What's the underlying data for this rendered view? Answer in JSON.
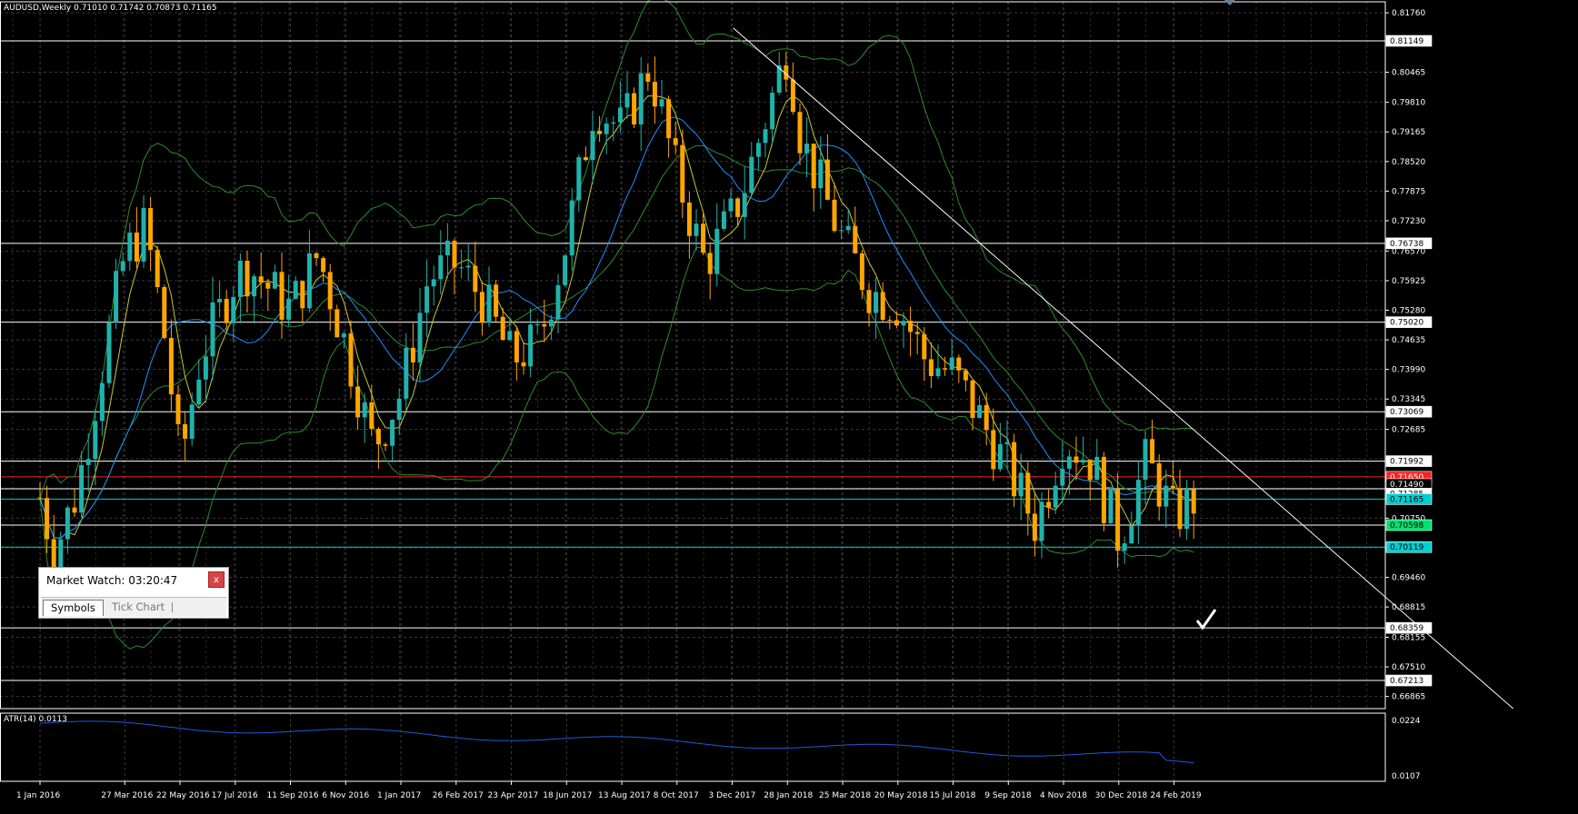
{
  "window": {
    "symbol_info": "AUDUSD,Weekly  0.71010 0.71742 0.70873 0.71165",
    "indicator_info": "ATR(14) 0.0113"
  },
  "colors": {
    "background": "#000000",
    "grid": "#3a3a3a",
    "bull_candle": "#20b2aa",
    "bear_candle": "#ffa500",
    "bollinger": "#2e8b2e",
    "fast_ma": "#c8c832",
    "slow_ma": "#1e90ff",
    "support_line": "#00ced1",
    "resistance_line": "#ff2020",
    "atr_line": "#1e5adc"
  },
  "price_axis": {
    "min": 0.666,
    "max": 0.82,
    "labels": [
      "0.81760",
      "0.80465",
      "0.79810",
      "0.79165",
      "0.78520",
      "0.77875",
      "0.77230",
      "0.76570",
      "0.75925",
      "0.75280",
      "0.74635",
      "0.73990",
      "0.73345",
      "0.72685",
      "0.72040",
      "0.71395",
      "0.70750",
      "0.70105",
      "0.69460",
      "0.68815",
      "0.68155",
      "0.67510",
      "0.66865"
    ]
  },
  "tags": [
    {
      "price": 0.81149,
      "text": "0.81149",
      "bg": "#ffffff",
      "fg": "#000000"
    },
    {
      "price": 0.76738,
      "text": "0.76738",
      "bg": "#ffffff",
      "fg": "#000000"
    },
    {
      "price": 0.7502,
      "text": "0.75020",
      "bg": "#ffffff",
      "fg": "#000000"
    },
    {
      "price": 0.73069,
      "text": "0.73069",
      "bg": "#ffffff",
      "fg": "#000000"
    },
    {
      "price": 0.71992,
      "text": "0.71992",
      "bg": "#ffffff",
      "fg": "#000000"
    },
    {
      "price": 0.7165,
      "text": "0.71650",
      "bg": "#ff2020",
      "fg": "#ffffff"
    },
    {
      "price": 0.7149,
      "text": "0.71490",
      "bg": "#000000",
      "fg": "#ffffff"
    },
    {
      "price": 0.71285,
      "text": "0.71285",
      "bg": "#ffffff",
      "fg": "#000000"
    },
    {
      "price": 0.71165,
      "text": "0.71165",
      "bg": "#00ced1",
      "fg": "#000000"
    },
    {
      "price": 0.70598,
      "text": "0.70598",
      "bg": "#00e070",
      "fg": "#000000"
    },
    {
      "price": 0.70119,
      "text": "0.70119",
      "bg": "#00ced1",
      "fg": "#000000"
    },
    {
      "price": 0.68359,
      "text": "0.68359",
      "bg": "#ffffff",
      "fg": "#000000"
    },
    {
      "price": 0.67213,
      "text": "0.67213",
      "bg": "#ffffff",
      "fg": "#000000"
    }
  ],
  "hlines": [
    {
      "price": 0.81149,
      "color": "#ffffff"
    },
    {
      "price": 0.76738,
      "color": "#ffffff"
    },
    {
      "price": 0.7502,
      "color": "#ffffff"
    },
    {
      "price": 0.73069,
      "color": "#ffffff"
    },
    {
      "price": 0.71992,
      "color": "#ffffff"
    },
    {
      "price": 0.7165,
      "color": "#ff2020"
    },
    {
      "price": 0.7139,
      "color": "#ffffff"
    },
    {
      "price": 0.71165,
      "color": "#00ced1"
    },
    {
      "price": 0.70598,
      "color": "#ffffff"
    },
    {
      "price": 0.70119,
      "color": "#00ced1"
    },
    {
      "price": 0.68359,
      "color": "#ffffff"
    },
    {
      "price": 0.67213,
      "color": "#ffffff"
    }
  ],
  "trendline": {
    "from": {
      "date": "4 Dec 2017",
      "price": 0.8143
    },
    "to": {
      "date": "3 Feb 2020",
      "price": 0.666
    }
  },
  "time_axis": [
    "1 Jan 2016",
    "27 Mar 2016",
    "22 May 2016",
    "17 Jul 2016",
    "11 Sep 2016",
    "6 Nov 2016",
    "1 Jan 2017",
    "26 Feb 2017",
    "23 Apr 2017",
    "18 Jun 2017",
    "13 Aug 2017",
    "8 Oct 2017",
    "3 Dec 2017",
    "28 Jan 2018",
    "25 Mar 2018",
    "20 May 2018",
    "15 Jul 2018",
    "9 Sep 2018",
    "4 Nov 2018",
    "30 Dec 2018",
    "24 Feb 2019"
  ],
  "atr_axis": {
    "labels": [
      "0.0224",
      "0.0107"
    ]
  },
  "market_watch": {
    "title": "Market Watch: 03:20:47",
    "close_label": "x",
    "tabs": [
      "Symbols",
      "Tick Chart"
    ]
  },
  "chart_data": {
    "type": "candlestick",
    "title": "AUDUSD,Weekly",
    "ylim": [
      0.666,
      0.82
    ],
    "close_path": [
      {
        "date": "1 Jan 2016",
        "close": 0.712
      },
      {
        "date": "15 Jan 2016",
        "close": 0.7
      },
      {
        "date": "7 Feb 2016",
        "close": 0.713
      },
      {
        "date": "27 Mar 2016",
        "close": 0.765
      },
      {
        "date": "17 Apr 2016",
        "close": 0.771
      },
      {
        "date": "8 May 2016",
        "close": 0.745
      },
      {
        "date": "22 May 2016",
        "close": 0.719
      },
      {
        "date": "12 Jun 2016",
        "close": 0.743
      },
      {
        "date": "17 Jul 2016",
        "close": 0.76
      },
      {
        "date": "31 Jul 2016",
        "close": 0.762
      },
      {
        "date": "11 Sep 2016",
        "close": 0.753
      },
      {
        "date": "9 Oct 2016",
        "close": 0.765
      },
      {
        "date": "6 Nov 2016",
        "close": 0.745
      },
      {
        "date": "4 Dec 2016",
        "close": 0.723
      },
      {
        "date": "1 Jan 2017",
        "close": 0.735
      },
      {
        "date": "29 Jan 2017",
        "close": 0.76
      },
      {
        "date": "26 Feb 2017",
        "close": 0.763
      },
      {
        "date": "26 Mar 2017",
        "close": 0.755
      },
      {
        "date": "23 Apr 2017",
        "close": 0.742
      },
      {
        "date": "21 May 2017",
        "close": 0.746
      },
      {
        "date": "18 Jun 2017",
        "close": 0.768
      },
      {
        "date": "16 Jul 2017",
        "close": 0.798
      },
      {
        "date": "13 Aug 2017",
        "close": 0.792
      },
      {
        "date": "10 Sep 2017",
        "close": 0.806
      },
      {
        "date": "8 Oct 2017",
        "close": 0.782
      },
      {
        "date": "5 Nov 2017",
        "close": 0.763
      },
      {
        "date": "3 Dec 2017",
        "close": 0.773
      },
      {
        "date": "17 Dec 2017",
        "close": 0.781
      },
      {
        "date": "28 Jan 2018",
        "close": 0.81
      },
      {
        "date": "11 Feb 2018",
        "close": 0.79
      },
      {
        "date": "25 Mar 2018",
        "close": 0.768
      },
      {
        "date": "22 Apr 2018",
        "close": 0.757
      },
      {
        "date": "20 May 2018",
        "close": 0.754
      },
      {
        "date": "17 Jun 2018",
        "close": 0.742
      },
      {
        "date": "15 Jul 2018",
        "close": 0.739
      },
      {
        "date": "12 Aug 2018",
        "close": 0.729
      },
      {
        "date": "9 Sep 2018",
        "close": 0.718
      },
      {
        "date": "7 Oct 2018",
        "close": 0.706
      },
      {
        "date": "4 Nov 2018",
        "close": 0.725
      },
      {
        "date": "2 Dec 2018",
        "close": 0.72
      },
      {
        "date": "30 Dec 2018",
        "close": 0.703
      },
      {
        "date": "27 Jan 2019",
        "close": 0.72
      },
      {
        "date": "24 Feb 2019",
        "close": 0.708
      },
      {
        "date": "17 Mar 2019",
        "close": 0.7117
      }
    ]
  }
}
